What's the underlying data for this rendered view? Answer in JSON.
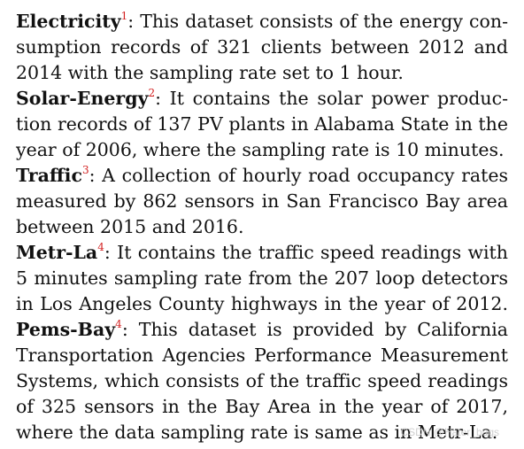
{
  "paragraphs": [
    {
      "term": "Electricity",
      "ref": "1",
      "lines": [
        ": This dataset consists of the energy con-",
        "sumption records of 321 clients between 2012 and",
        "2014 with the sampling rate set to 1 hour."
      ]
    },
    {
      "term": "Solar-Energy",
      "ref": "2",
      "lines": [
        ": It contains the solar power produc-",
        "tion records of 137 PV plants in Alabama State in the",
        "year of 2006, where the sampling rate is 10 minutes."
      ]
    },
    {
      "term": "Traffic",
      "ref": "3",
      "lines": [
        ": A collection of hourly road occupancy rates",
        "measured by 862 sensors in San Francisco Bay area",
        "between 2015 and 2016."
      ]
    },
    {
      "term": "Metr-La",
      "ref": "4",
      "lines": [
        ": It contains the traffic speed readings with",
        "5 minutes sampling rate from the 207 loop detectors",
        "in Los Angeles County highways in the year of 2012."
      ]
    },
    {
      "term": "Pems-Bay",
      "ref": "4",
      "lines": [
        ": This dataset is provided by California",
        "Transportation Agencies Performance Measurement",
        "Systems, which consists of the traffic speed readings",
        "of 325 sensors in the Bay Area in the year of 2017,",
        "where the data sampling rate is same as in Metr-La."
      ]
    }
  ],
  "watermark": "CSDN @Hater_bugs"
}
